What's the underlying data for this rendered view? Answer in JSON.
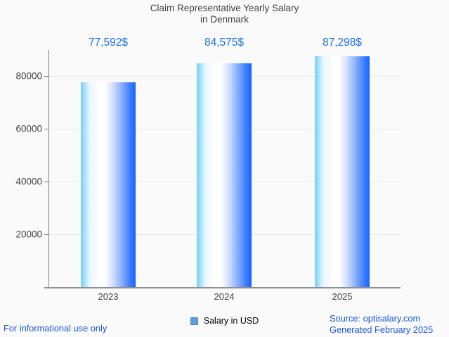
{
  "title": {
    "line1": "Claim Representative Yearly Salary",
    "line2": "in Denmark"
  },
  "chart_data": {
    "type": "bar",
    "title": "Claim Representative Yearly Salary in Denmark",
    "categories": [
      "2023",
      "2024",
      "2025"
    ],
    "values": [
      77592,
      84575,
      87298
    ],
    "value_labels": [
      "77,592$",
      "84,575$",
      "87,298$"
    ],
    "series_name": "Salary in USD",
    "xlabel": "",
    "ylabel": "",
    "ylim": [
      0,
      90000
    ],
    "y_ticks": [
      20000,
      40000,
      60000,
      80000
    ],
    "y_tick_labels": [
      "20000",
      "40000",
      "60000",
      "80000"
    ],
    "grid": "horizontal",
    "legend_position": "bottom-center",
    "bar_gradient": [
      "#74cffb",
      "#ffffff",
      "#1566fe"
    ]
  },
  "legend": {
    "label": "Salary in USD",
    "swatch_fill": "#56a0ee",
    "swatch_border": "#6b7f8f"
  },
  "footer": {
    "left": "For informational use only",
    "source": "Source: optisalary.com",
    "generated": "Generated February 2025"
  },
  "colors": {
    "background": "#fafafa",
    "title_text": "#424242",
    "axis_text": "#424242",
    "value_label_text": "#1a73e8",
    "footer_text": "#1b57d8",
    "gridline": "#e9e9e9",
    "axis_line": "#7f7f7f"
  }
}
